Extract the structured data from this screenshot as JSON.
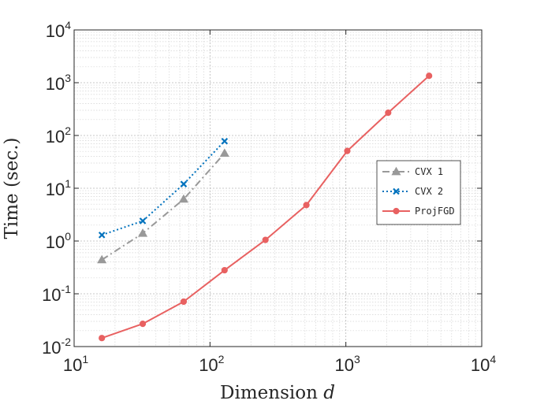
{
  "chart_data": {
    "type": "line",
    "xlabel": "Dimension",
    "xlabel_var": "d",
    "ylabel": "Time (sec.)",
    "x_scale": "log",
    "y_scale": "log",
    "xlim": [
      10,
      10000
    ],
    "ylim": [
      0.01,
      10000
    ],
    "grid": true,
    "minor_grid": true,
    "legend_position": "right-middle",
    "x_ticks": [
      {
        "value": 10,
        "base": "10",
        "exp": "1"
      },
      {
        "value": 100,
        "base": "10",
        "exp": "2"
      },
      {
        "value": 1000,
        "base": "10",
        "exp": "3"
      },
      {
        "value": 10000,
        "base": "10",
        "exp": "4"
      }
    ],
    "y_ticks": [
      {
        "value": 0.01,
        "base": "10",
        "exp": "-2"
      },
      {
        "value": 0.1,
        "base": "10",
        "exp": "-1"
      },
      {
        "value": 1,
        "base": "10",
        "exp": "0"
      },
      {
        "value": 10,
        "base": "10",
        "exp": "1"
      },
      {
        "value": 100,
        "base": "10",
        "exp": "2"
      },
      {
        "value": 1000,
        "base": "10",
        "exp": "3"
      },
      {
        "value": 10000,
        "base": "10",
        "exp": "4"
      }
    ],
    "series": [
      {
        "name": "CVX 1",
        "color": "#999999",
        "dash": "dashdot",
        "marker": "triangle",
        "x": [
          16,
          32,
          64,
          128
        ],
        "y": [
          0.44,
          1.4,
          6.2,
          46
        ]
      },
      {
        "name": "CVX 2",
        "color": "#0072BD",
        "dash": "dotted",
        "marker": "x",
        "x": [
          16,
          32,
          64,
          128
        ],
        "y": [
          1.3,
          2.4,
          12,
          78
        ]
      },
      {
        "name": "ProjFGD",
        "color": "#E86161",
        "dash": "solid",
        "marker": "circle",
        "x": [
          16,
          32,
          64,
          128,
          256,
          512,
          1024,
          2048,
          4096
        ],
        "y": [
          0.0145,
          0.027,
          0.071,
          0.28,
          1.05,
          4.8,
          51,
          270,
          1350
        ]
      }
    ]
  }
}
